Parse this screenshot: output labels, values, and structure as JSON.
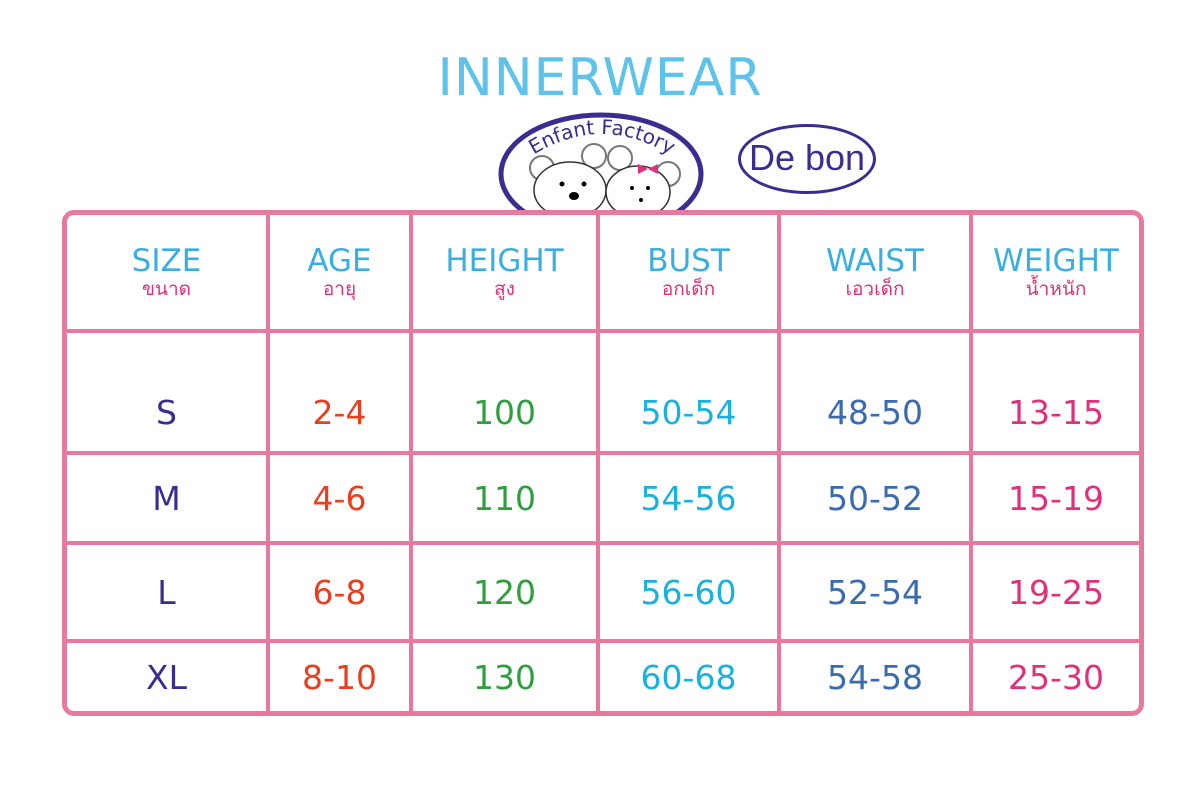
{
  "title": "INNERWEAR",
  "logos": {
    "left": "Enfant Factory",
    "right": "De bon"
  },
  "colors": {
    "border": "#e8799e",
    "header_en": "#3aaee0",
    "header_th": "#e0307a",
    "size": "#3a2d8f",
    "age": "#e8401f",
    "height": "#2f9e3f",
    "bust": "#1ab0e0",
    "waist": "#3a6ab0",
    "weight": "#e0307a"
  },
  "headers": [
    {
      "en": "SIZE",
      "th": "ขนาด"
    },
    {
      "en": "AGE",
      "th": "อายุ"
    },
    {
      "en": "HEIGHT",
      "th": "สูง"
    },
    {
      "en": "BUST",
      "th": "อกเด็ก"
    },
    {
      "en": "WAIST",
      "th": "เอวเด็ก"
    },
    {
      "en": "WEIGHT",
      "th": "น้ำหนัก"
    }
  ],
  "rows": [
    [
      "S",
      "2-4",
      "100",
      "50-54",
      "48-50",
      "13-15"
    ],
    [
      "M",
      "4-6",
      "110",
      "54-56",
      "50-52",
      "15-19"
    ],
    [
      "L",
      "6-8",
      "120",
      "56-60",
      "52-54",
      "19-25"
    ],
    [
      "XL",
      "8-10",
      "130",
      "60-68",
      "54-58",
      "25-30"
    ]
  ]
}
